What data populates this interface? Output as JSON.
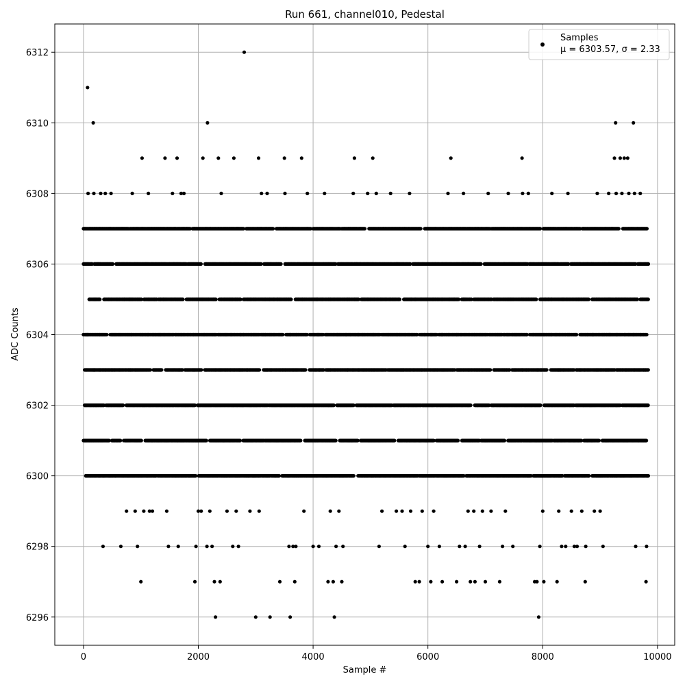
{
  "chart_data": {
    "type": "scatter",
    "title": "Run 661, channel010, Pedestal",
    "xlabel": "Sample #",
    "ylabel": "ADC Counts",
    "xlim": [
      -500,
      10300
    ],
    "ylim": [
      6295.2,
      6312.8
    ],
    "x_ticks": [
      0,
      2000,
      4000,
      6000,
      8000,
      10000
    ],
    "y_ticks": [
      6296,
      6298,
      6300,
      6302,
      6304,
      6306,
      6308,
      6310,
      6312
    ],
    "grid": true,
    "marker_color": "#000000",
    "legend": {
      "placement": "top-right",
      "entries": [
        {
          "name": "Samples",
          "stats": "μ = 6303.57, σ = 2.33"
        }
      ]
    },
    "series": [
      {
        "name": "Samples",
        "points": [
          [
            0,
            6304
          ],
          [
            5,
            6306
          ],
          [
            10,
            6307
          ],
          [
            20,
            6302
          ],
          [
            30,
            6301
          ],
          [
            40,
            6300
          ],
          [
            50,
            6303
          ],
          [
            60,
            6304
          ],
          [
            70,
            6311
          ],
          [
            80,
            6308
          ],
          [
            100,
            6305
          ],
          [
            120,
            6300
          ],
          [
            150,
            6306
          ],
          [
            170,
            6310
          ],
          [
            180,
            6308
          ],
          [
            200,
            6307
          ],
          [
            220,
            6302
          ],
          [
            260,
            6301
          ],
          [
            280,
            6300
          ],
          [
            300,
            6308
          ],
          [
            340,
            6298
          ],
          [
            350,
            6300
          ],
          [
            380,
            6308
          ],
          [
            450,
            6300
          ],
          [
            480,
            6308
          ],
          [
            560,
            6300
          ],
          [
            650,
            6298
          ],
          [
            700,
            6301
          ],
          [
            750,
            6299
          ],
          [
            800,
            6307
          ],
          [
            850,
            6308
          ],
          [
            900,
            6299
          ],
          [
            940,
            6298
          ],
          [
            1000,
            6297
          ],
          [
            1020,
            6309
          ],
          [
            1050,
            6299
          ],
          [
            1100,
            6300
          ],
          [
            1130,
            6308
          ],
          [
            1150,
            6299
          ],
          [
            1200,
            6299
          ],
          [
            1250,
            6300
          ],
          [
            1420,
            6309
          ],
          [
            1450,
            6299
          ],
          [
            1480,
            6298
          ],
          [
            1550,
            6308
          ],
          [
            1600,
            6300
          ],
          [
            1630,
            6309
          ],
          [
            1650,
            6298
          ],
          [
            1700,
            6308
          ],
          [
            1750,
            6308
          ],
          [
            1800,
            6307
          ],
          [
            1900,
            6302
          ],
          [
            1940,
            6297
          ],
          [
            1960,
            6298
          ],
          [
            2000,
            6299
          ],
          [
            2050,
            6299
          ],
          [
            2080,
            6309
          ],
          [
            2150,
            6298
          ],
          [
            2160,
            6310
          ],
          [
            2200,
            6299
          ],
          [
            2240,
            6298
          ],
          [
            2280,
            6297
          ],
          [
            2300,
            6296
          ],
          [
            2350,
            6309
          ],
          [
            2380,
            6297
          ],
          [
            2400,
            6308
          ],
          [
            2500,
            6299
          ],
          [
            2550,
            6300
          ],
          [
            2600,
            6298
          ],
          [
            2620,
            6309
          ],
          [
            2660,
            6299
          ],
          [
            2700,
            6298
          ],
          [
            2800,
            6312
          ],
          [
            2900,
            6299
          ],
          [
            3000,
            6296
          ],
          [
            3050,
            6309
          ],
          [
            3060,
            6299
          ],
          [
            3100,
            6308
          ],
          [
            3200,
            6308
          ],
          [
            3250,
            6296
          ],
          [
            3420,
            6297
          ],
          [
            3500,
            6309
          ],
          [
            3510,
            6308
          ],
          [
            3580,
            6298
          ],
          [
            3600,
            6296
          ],
          [
            3650,
            6298
          ],
          [
            3680,
            6297
          ],
          [
            3700,
            6298
          ],
          [
            3800,
            6309
          ],
          [
            3840,
            6299
          ],
          [
            3900,
            6308
          ],
          [
            4000,
            6298
          ],
          [
            4100,
            6298
          ],
          [
            4200,
            6308
          ],
          [
            4260,
            6297
          ],
          [
            4300,
            6299
          ],
          [
            4350,
            6297
          ],
          [
            4370,
            6296
          ],
          [
            4400,
            6298
          ],
          [
            4450,
            6299
          ],
          [
            4500,
            6297
          ],
          [
            4520,
            6298
          ],
          [
            4700,
            6308
          ],
          [
            4720,
            6309
          ],
          [
            4800,
            6307
          ],
          [
            4950,
            6308
          ],
          [
            5040,
            6309
          ],
          [
            5100,
            6308
          ],
          [
            5150,
            6298
          ],
          [
            5200,
            6299
          ],
          [
            5350,
            6308
          ],
          [
            5450,
            6299
          ],
          [
            5550,
            6299
          ],
          [
            5600,
            6298
          ],
          [
            5680,
            6308
          ],
          [
            5700,
            6299
          ],
          [
            5780,
            6297
          ],
          [
            5850,
            6297
          ],
          [
            5900,
            6299
          ],
          [
            6000,
            6298
          ],
          [
            6050,
            6297
          ],
          [
            6100,
            6299
          ],
          [
            6200,
            6298
          ],
          [
            6250,
            6297
          ],
          [
            6350,
            6308
          ],
          [
            6400,
            6309
          ],
          [
            6500,
            6297
          ],
          [
            6550,
            6298
          ],
          [
            6620,
            6308
          ],
          [
            6650,
            6298
          ],
          [
            6700,
            6299
          ],
          [
            6740,
            6297
          ],
          [
            6800,
            6299
          ],
          [
            6820,
            6297
          ],
          [
            6900,
            6298
          ],
          [
            6950,
            6299
          ],
          [
            7000,
            6297
          ],
          [
            7050,
            6308
          ],
          [
            7100,
            6299
          ],
          [
            7250,
            6297
          ],
          [
            7300,
            6298
          ],
          [
            7350,
            6299
          ],
          [
            7400,
            6308
          ],
          [
            7480,
            6298
          ],
          [
            7640,
            6309
          ],
          [
            7650,
            6308
          ],
          [
            7750,
            6308
          ],
          [
            7860,
            6297
          ],
          [
            7900,
            6297
          ],
          [
            7930,
            6296
          ],
          [
            7950,
            6298
          ],
          [
            8000,
            6299
          ],
          [
            8020,
            6297
          ],
          [
            8100,
            6305
          ],
          [
            8160,
            6308
          ],
          [
            8250,
            6297
          ],
          [
            8280,
            6299
          ],
          [
            8330,
            6298
          ],
          [
            8400,
            6298
          ],
          [
            8440,
            6308
          ],
          [
            8500,
            6299
          ],
          [
            8550,
            6298
          ],
          [
            8600,
            6298
          ],
          [
            8680,
            6299
          ],
          [
            8740,
            6297
          ],
          [
            8750,
            6298
          ],
          [
            8800,
            6300
          ],
          [
            8900,
            6299
          ],
          [
            8950,
            6308
          ],
          [
            9000,
            6299
          ],
          [
            9050,
            6298
          ],
          [
            9150,
            6308
          ],
          [
            9250,
            6309
          ],
          [
            9270,
            6310
          ],
          [
            9280,
            6308
          ],
          [
            9350,
            6309
          ],
          [
            9380,
            6308
          ],
          [
            9420,
            6309
          ],
          [
            9480,
            6309
          ],
          [
            9500,
            6308
          ],
          [
            9550,
            6300
          ],
          [
            9580,
            6310
          ],
          [
            9600,
            6308
          ],
          [
            9620,
            6298
          ],
          [
            9700,
            6308
          ],
          [
            9760,
            6300
          ],
          [
            9800,
            6297
          ],
          [
            9810,
            6298
          ],
          [
            9830,
            6300
          ],
          [
            9840,
            6306
          ]
        ],
        "bands": [
          {
            "y": 6307,
            "x_start": 0,
            "x_end": 9820
          },
          {
            "y": 6306,
            "x_start": 0,
            "x_end": 9840
          },
          {
            "y": 6305,
            "x_start": 100,
            "x_end": 9840
          },
          {
            "y": 6304,
            "x_start": 0,
            "x_end": 9840
          },
          {
            "y": 6303,
            "x_start": 20,
            "x_end": 9840
          },
          {
            "y": 6302,
            "x_start": 20,
            "x_end": 9840
          },
          {
            "y": 6301,
            "x_start": 0,
            "x_end": 9840
          },
          {
            "y": 6300,
            "x_start": 40,
            "x_end": 9840
          }
        ]
      }
    ]
  }
}
